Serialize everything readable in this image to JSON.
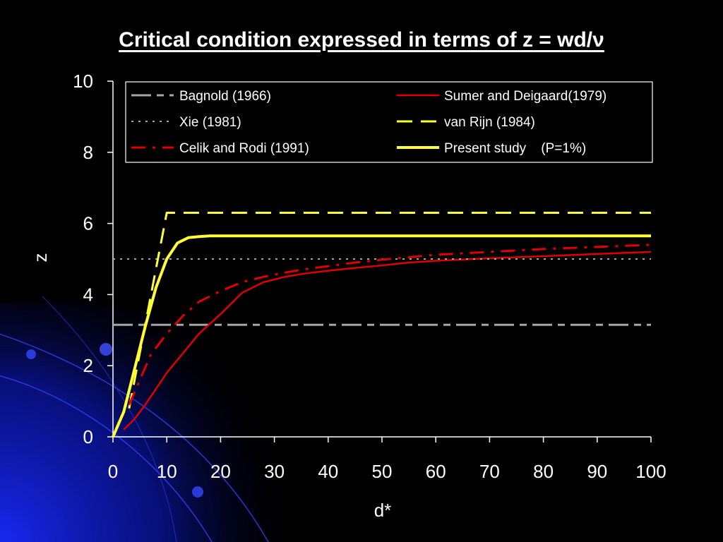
{
  "slide": {
    "title": "Critical condition expressed in terms of z = wd/ν"
  },
  "colors": {
    "background": "#000000",
    "axis": "#ffffff",
    "bagnold": "#a6a6a6",
    "xie": "#a6a6a6",
    "celik": "#e00000",
    "sumer": "#e00000",
    "vanrijn": "#ffff33",
    "present": "#ffff33"
  },
  "chart_data": {
    "type": "line",
    "title": "Critical condition expressed in terms of z = wd/ν",
    "xlabel": "d*",
    "ylabel": "z",
    "xlim": [
      0,
      100
    ],
    "ylim": [
      0,
      10
    ],
    "x_ticks": [
      0,
      10,
      20,
      30,
      40,
      50,
      60,
      70,
      80,
      90,
      100
    ],
    "y_ticks": [
      0,
      2,
      4,
      6,
      8,
      10
    ],
    "grid": false,
    "legend": {
      "placement": "top",
      "columns": 2
    },
    "series": [
      {
        "name": "Bagnold (1966)",
        "style": "long-dash-short-dash",
        "color": "#a6a6a6",
        "x": [
          0,
          100
        ],
        "y": [
          3.15,
          3.15
        ]
      },
      {
        "name": "Sumer and Deigaard(1979)",
        "style": "solid",
        "color": "#e00000",
        "x": [
          2,
          4,
          6,
          8,
          10,
          13,
          16,
          20,
          24,
          28,
          32,
          36,
          40,
          45,
          50,
          55,
          60,
          70,
          80,
          90,
          100
        ],
        "y": [
          0.2,
          0.5,
          0.9,
          1.35,
          1.8,
          2.35,
          2.9,
          3.45,
          4.05,
          4.35,
          4.5,
          4.6,
          4.67,
          4.75,
          4.82,
          4.9,
          4.95,
          5.02,
          5.08,
          5.14,
          5.2
        ]
      },
      {
        "name": "Xie (1981)",
        "style": "dotted",
        "color": "#a6a6a6",
        "x": [
          0,
          100
        ],
        "y": [
          5.0,
          5.0
        ]
      },
      {
        "name": "van Rijn (1984)",
        "style": "dashed",
        "color": "#ffff33",
        "x": [
          3,
          10,
          100
        ],
        "y": [
          0.8,
          6.3,
          6.3
        ]
      },
      {
        "name": "Celik and Rodi (1991)",
        "style": "dash-dot",
        "color": "#e00000",
        "x": [
          3,
          5,
          7,
          10,
          13,
          16,
          20,
          24,
          28,
          32,
          36,
          40,
          45,
          50,
          55,
          60,
          70,
          80,
          90,
          100
        ],
        "y": [
          0.9,
          1.6,
          2.3,
          2.9,
          3.4,
          3.8,
          4.1,
          4.35,
          4.5,
          4.62,
          4.72,
          4.8,
          4.9,
          4.98,
          5.05,
          5.12,
          5.2,
          5.28,
          5.34,
          5.4
        ]
      },
      {
        "name": "Present study    (P=1%)",
        "style": "solid-thick",
        "color": "#ffff33",
        "x": [
          0,
          2,
          4,
          6,
          8,
          10,
          12,
          14,
          16,
          18,
          20,
          30,
          50,
          70,
          100
        ],
        "y": [
          0.0,
          0.7,
          1.9,
          3.1,
          4.2,
          5.0,
          5.45,
          5.6,
          5.63,
          5.65,
          5.65,
          5.65,
          5.65,
          5.65,
          5.65
        ]
      }
    ]
  }
}
